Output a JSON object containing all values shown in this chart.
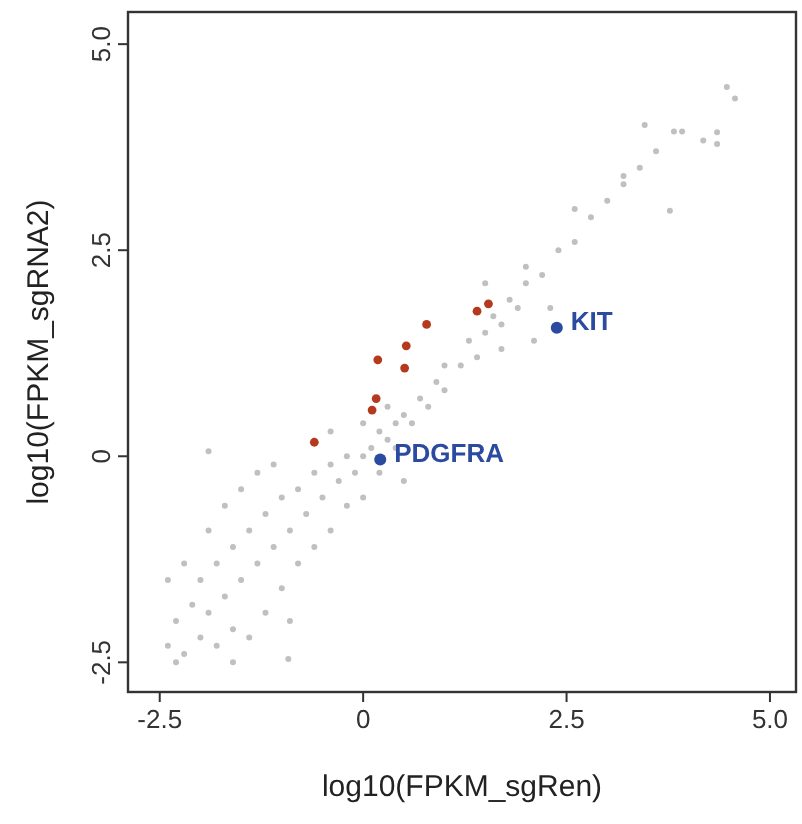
{
  "chart_data": {
    "type": "scatter",
    "xlabel": "log10(FPKM_sgRen)",
    "ylabel": "log10(FPKM_sgRNA2)",
    "xlim": [
      -2.89,
      5.32
    ],
    "ylim": [
      -2.86,
      5.39
    ],
    "xticks": [
      -2.5,
      0,
      {
        "value": 2.5,
        "label": "2.5"
      },
      {
        "value": 5,
        "label": "5.0"
      }
    ],
    "yticks": [
      -2.5,
      0,
      {
        "value": 2.5,
        "label": "2.5"
      },
      {
        "value": 5,
        "label": "5.0"
      }
    ],
    "grid": false,
    "marker": "circle",
    "series": [
      {
        "color": "#c0c0c0",
        "x": [
          -2.4,
          -2.3,
          -2.2,
          -2.1,
          -2.0,
          -2.0,
          -1.9,
          -1.8,
          -1.8,
          -1.7,
          -1.6,
          -1.6,
          -1.5,
          -1.4,
          -1.4,
          -1.3,
          -1.2,
          -1.2,
          -1.1,
          -1.0,
          -1.0,
          -0.9,
          -0.9,
          -0.8,
          -0.8,
          -0.7,
          -0.6,
          -0.6,
          -0.5,
          -0.4,
          -0.4,
          -0.3,
          -0.2,
          -0.2,
          -0.1,
          0.0,
          0.0,
          0.1,
          0.2,
          0.2,
          0.3,
          0.4,
          0.4,
          0.5,
          0.6,
          0.7,
          0.8,
          0.9,
          1.0,
          1.0,
          1.2,
          1.3,
          1.4,
          1.5,
          1.6,
          1.7,
          1.8,
          1.9,
          2.0,
          2.2,
          2.4,
          2.6,
          2.8,
          3.0,
          3.2,
          3.4,
          3.6,
          -2.4,
          -2.2,
          -1.9,
          -1.7,
          -1.5,
          -1.3,
          -1.1,
          -2.3,
          -1.6,
          -0.4,
          0.0,
          0.3,
          0.5,
          1.7,
          2.1,
          2.0,
          2.3,
          1.5,
          2.6,
          3.2,
          4.47,
          4.57,
          3.46,
          3.82,
          3.92,
          4.18,
          4.35,
          4.35,
          3.77,
          -1.9,
          -0.92
        ],
        "values": [
          -2.3,
          -2.0,
          -2.4,
          -1.8,
          -2.2,
          -1.5,
          -1.9,
          -2.3,
          -1.3,
          -1.7,
          -2.1,
          -1.1,
          -1.5,
          -2.2,
          -0.9,
          -1.3,
          -1.9,
          -0.7,
          -1.1,
          -1.6,
          -0.5,
          -0.9,
          -2.0,
          -1.3,
          -0.4,
          -0.7,
          -1.1,
          -0.2,
          -0.5,
          -0.9,
          -0.1,
          -0.3,
          -0.6,
          0.0,
          -0.2,
          0.0,
          -0.5,
          0.1,
          -0.2,
          0.3,
          0.2,
          0.4,
          0.1,
          0.5,
          0.4,
          0.7,
          0.6,
          0.9,
          0.8,
          1.1,
          1.1,
          1.4,
          1.2,
          1.5,
          1.7,
          1.6,
          1.9,
          1.8,
          2.1,
          2.2,
          2.5,
          2.6,
          2.9,
          3.1,
          3.3,
          3.5,
          3.7,
          -1.5,
          -1.3,
          -0.9,
          -0.6,
          -0.4,
          -0.2,
          -0.1,
          -2.5,
          -2.5,
          0.3,
          0.4,
          0.6,
          -0.3,
          1.3,
          1.4,
          2.3,
          1.8,
          2.1,
          3.0,
          3.4,
          4.48,
          4.34,
          4.02,
          3.94,
          3.94,
          3.83,
          3.93,
          3.79,
          2.98,
          0.06,
          -2.46
        ]
      },
      {
        "color": "#b5391f",
        "x": [
          -0.6,
          0.11,
          0.16,
          0.18,
          0.51,
          0.53,
          0.78,
          1.4,
          1.54
        ],
        "values": [
          0.17,
          0.56,
          0.7,
          1.17,
          1.07,
          1.34,
          1.6,
          1.76,
          1.85
        ]
      },
      {
        "color": "#2b4ba0",
        "x": [
          2.38,
          0.21
        ],
        "values": [
          1.56,
          -0.04
        ]
      }
    ],
    "annotations": [
      {
        "text": "KIT",
        "x": 2.38,
        "y": 1.56
      },
      {
        "text": "PDGFRA",
        "x": 0.21,
        "y": -0.04
      }
    ]
  }
}
